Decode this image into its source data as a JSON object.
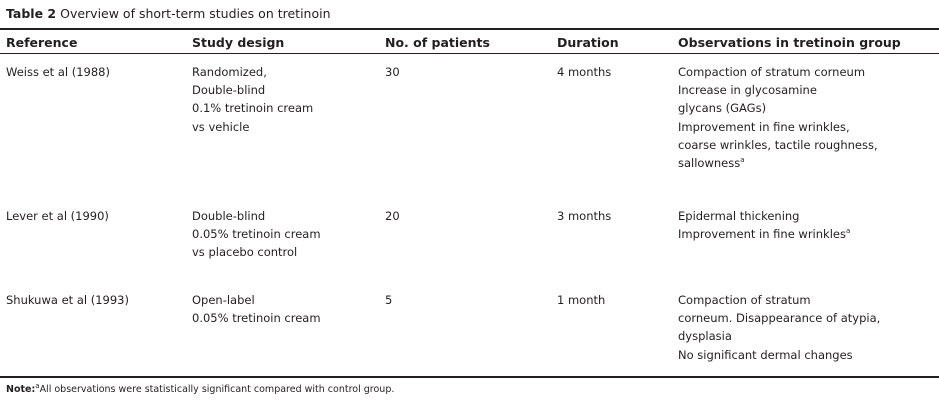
{
  "caption": {
    "label": "Table 2",
    "text": "Overview of short-term studies on tretinoin"
  },
  "columns": {
    "reference": "Reference",
    "design": "Study design",
    "patients": "No. of patients",
    "duration": "Duration",
    "observations": "Observations in tretinoin group"
  },
  "rows": [
    {
      "reference": "Weiss et al (1988)",
      "design": [
        "Randomized,",
        "Double-blind",
        "0.1% tretinoin cream",
        "vs vehicle"
      ],
      "patients": "30",
      "duration": "4 months",
      "observations": [
        "Compaction of stratum corneum",
        "Increase in glycosamine",
        "glycans (GAGs)",
        "Improvement in fine wrinkles,",
        "coarse wrinkles, tactile roughness,",
        "sallowness"
      ],
      "footnote_mark": "a"
    },
    {
      "reference": "Lever et al (1990)",
      "design": [
        "Double-blind",
        "0.05% tretinoin cream",
        "vs placebo control"
      ],
      "patients": "20",
      "duration": "3 months",
      "observations": [
        "Epidermal thickening",
        "Improvement in fine wrinkles"
      ],
      "footnote_mark": "a"
    },
    {
      "reference": "Shukuwa et al (1993)",
      "design": [
        "Open-label",
        "0.05% tretinoin cream"
      ],
      "patients": "5",
      "duration": "1 month",
      "observations": [
        "Compaction of stratum",
        "corneum. Disappearance of atypia,",
        "dysplasia",
        "No significant dermal changes"
      ]
    }
  ],
  "note": {
    "label": "Note:",
    "mark": "a",
    "text": "All observations were statistically significant compared with control group."
  }
}
